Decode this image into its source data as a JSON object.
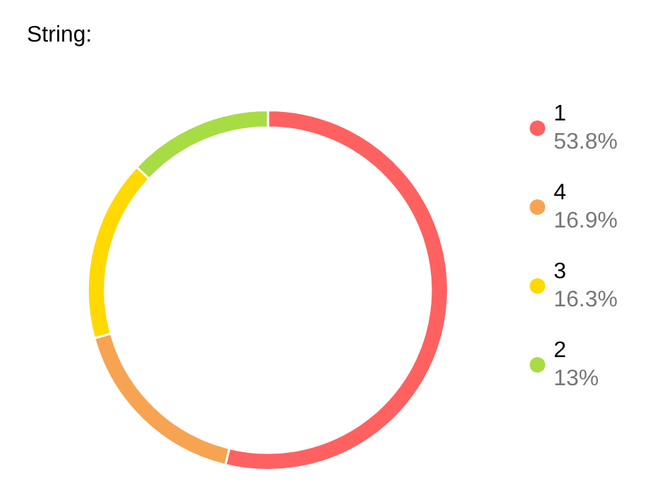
{
  "chart_data": {
    "type": "donut",
    "title": "String:",
    "categories": [
      "1",
      "4",
      "3",
      "2"
    ],
    "values": [
      53.8,
      16.9,
      16.3,
      13
    ],
    "value_labels": [
      "53.8%",
      "16.9%",
      "16.3%",
      "13%"
    ],
    "colors": [
      "#ff6161",
      "#f7a452",
      "#ffd900",
      "#a8dc44"
    ],
    "legend": "right"
  }
}
